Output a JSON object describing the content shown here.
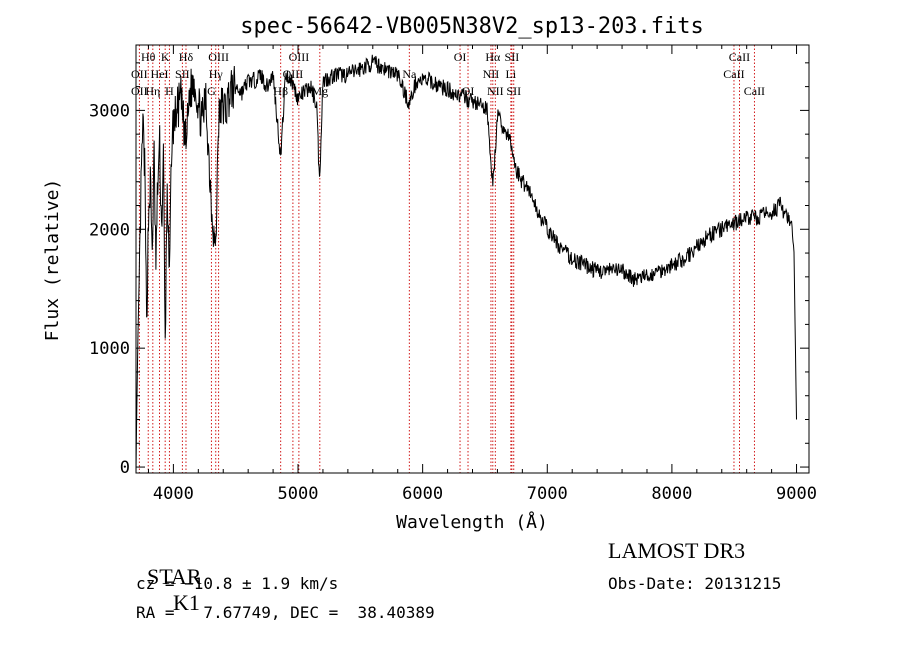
{
  "chart_data": {
    "type": "line",
    "title": "spec-56642-VB005N38V2_sp13-203.fits",
    "xlabel": "Wavelength (Å)",
    "ylabel": "Flux (relative)",
    "xlim": [
      3700,
      9100
    ],
    "ylim": [
      -50,
      3550
    ],
    "xticks": [
      4000,
      5000,
      6000,
      7000,
      8000,
      9000
    ],
    "yticks": [
      0,
      1000,
      2000,
      3000
    ],
    "grid": false,
    "series": [
      {
        "name": "flux",
        "anchors": [
          [
            3700,
            0
          ],
          [
            3712,
            700
          ],
          [
            3725,
            1500
          ],
          [
            3740,
            2300
          ],
          [
            3755,
            2900
          ],
          [
            3770,
            2500
          ],
          [
            3785,
            1200
          ],
          [
            3800,
            2100
          ],
          [
            3815,
            2400
          ],
          [
            3830,
            1800
          ],
          [
            3845,
            2600
          ],
          [
            3860,
            1700
          ],
          [
            3875,
            2400
          ],
          [
            3890,
            2700
          ],
          [
            3905,
            2000
          ],
          [
            3920,
            2600
          ],
          [
            3934,
            1000
          ],
          [
            3950,
            2400
          ],
          [
            3968,
            1500
          ],
          [
            3985,
            2700
          ],
          [
            4000,
            2900
          ],
          [
            4030,
            3000
          ],
          [
            4060,
            3100
          ],
          [
            4101,
            2700
          ],
          [
            4130,
            3150
          ],
          [
            4170,
            3250
          ],
          [
            4200,
            3050
          ],
          [
            4230,
            2900
          ],
          [
            4260,
            3100
          ],
          [
            4290,
            2500
          ],
          [
            4310,
            2150
          ],
          [
            4340,
            1800
          ],
          [
            4360,
            2900
          ],
          [
            4390,
            3050
          ],
          [
            4420,
            3000
          ],
          [
            4450,
            3150
          ],
          [
            4500,
            3200
          ],
          [
            4550,
            3150
          ],
          [
            4600,
            3250
          ],
          [
            4650,
            3250
          ],
          [
            4700,
            3300
          ],
          [
            4750,
            3200
          ],
          [
            4800,
            3300
          ],
          [
            4861,
            2600
          ],
          [
            4900,
            3300
          ],
          [
            4950,
            3250
          ],
          [
            5000,
            3100
          ],
          [
            5050,
            3150
          ],
          [
            5100,
            3200
          ],
          [
            5150,
            3050
          ],
          [
            5172,
            2400
          ],
          [
            5200,
            3250
          ],
          [
            5300,
            3300
          ],
          [
            5400,
            3300
          ],
          [
            5500,
            3350
          ],
          [
            5600,
            3400
          ],
          [
            5700,
            3350
          ],
          [
            5800,
            3300
          ],
          [
            5893,
            3050
          ],
          [
            5950,
            3250
          ],
          [
            6050,
            3250
          ],
          [
            6150,
            3200
          ],
          [
            6250,
            3150
          ],
          [
            6350,
            3100
          ],
          [
            6450,
            3050
          ],
          [
            6520,
            3000
          ],
          [
            6563,
            2350
          ],
          [
            6600,
            2950
          ],
          [
            6650,
            2850
          ],
          [
            6700,
            2750
          ],
          [
            6750,
            2500
          ],
          [
            6800,
            2400
          ],
          [
            6850,
            2350
          ],
          [
            6900,
            2200
          ],
          [
            7000,
            2000
          ],
          [
            7100,
            1850
          ],
          [
            7200,
            1750
          ],
          [
            7300,
            1700
          ],
          [
            7400,
            1650
          ],
          [
            7500,
            1650
          ],
          [
            7600,
            1650
          ],
          [
            7700,
            1580
          ],
          [
            7800,
            1600
          ],
          [
            7900,
            1650
          ],
          [
            8000,
            1700
          ],
          [
            8100,
            1750
          ],
          [
            8200,
            1850
          ],
          [
            8300,
            1950
          ],
          [
            8400,
            2000
          ],
          [
            8500,
            2050
          ],
          [
            8600,
            2100
          ],
          [
            8700,
            2100
          ],
          [
            8800,
            2150
          ],
          [
            8870,
            2200
          ],
          [
            8920,
            2100
          ],
          [
            8960,
            2050
          ],
          [
            8980,
            1800
          ],
          [
            9000,
            400
          ]
        ]
      }
    ],
    "line_groups": [
      {
        "name": "row1",
        "labels": [
          {
            "text": "Hθ",
            "wave": 3798
          },
          {
            "text": "K",
            "wave": 3934
          },
          {
            "text": "Hδ",
            "wave": 4101
          },
          {
            "text": "OIII",
            "wave": 4363
          },
          {
            "text": "OIII",
            "wave": 5007
          },
          {
            "text": "OI",
            "wave": 6300
          },
          {
            "text": "Hα",
            "wave": 6563
          },
          {
            "text": "SII",
            "wave": 6716
          },
          {
            "text": "CaII",
            "wave": 8542
          }
        ]
      },
      {
        "name": "row2",
        "labels": [
          {
            "text": "OII",
            "wave": 3727
          },
          {
            "text": "HeI",
            "wave": 3889
          },
          {
            "text": "SII",
            "wave": 4072
          },
          {
            "text": "Hγ",
            "wave": 4340
          },
          {
            "text": "OIII",
            "wave": 4959
          },
          {
            "text": "Na",
            "wave": 5893
          },
          {
            "text": "NII",
            "wave": 6548
          },
          {
            "text": "Li",
            "wave": 6708
          },
          {
            "text": "CaII",
            "wave": 8498
          }
        ]
      },
      {
        "name": "row3",
        "labels": [
          {
            "text": "OII",
            "wave": 3727
          },
          {
            "text": "Hη",
            "wave": 3835
          },
          {
            "text": "H",
            "wave": 3968
          },
          {
            "text": "G",
            "wave": 4305
          },
          {
            "text": "Hβ",
            "wave": 4861
          },
          {
            "text": "Mg",
            "wave": 5175
          },
          {
            "text": "OI",
            "wave": 6364
          },
          {
            "text": "NII",
            "wave": 6583
          },
          {
            "text": "SII",
            "wave": 6731
          },
          {
            "text": "CaII",
            "wave": 8662
          }
        ]
      }
    ],
    "line_waves": [
      3727,
      3798,
      3835,
      3889,
      3934,
      3968,
      4072,
      4101,
      4305,
      4340,
      4363,
      4861,
      4959,
      5007,
      5175,
      5893,
      6300,
      6364,
      6548,
      6563,
      6583,
      6708,
      6716,
      6731,
      8498,
      8542,
      8662
    ],
    "line_color": "#cc0000"
  },
  "info": {
    "class_label": "STAR",
    "subclass": "K1",
    "survey": "LAMOST DR3",
    "cz_text": "cz = −10.8 ± 1.9 km/s",
    "obs_date": "Obs-Date: 20131215",
    "radec": "RA =   7.67749, DEC =  38.40389"
  }
}
